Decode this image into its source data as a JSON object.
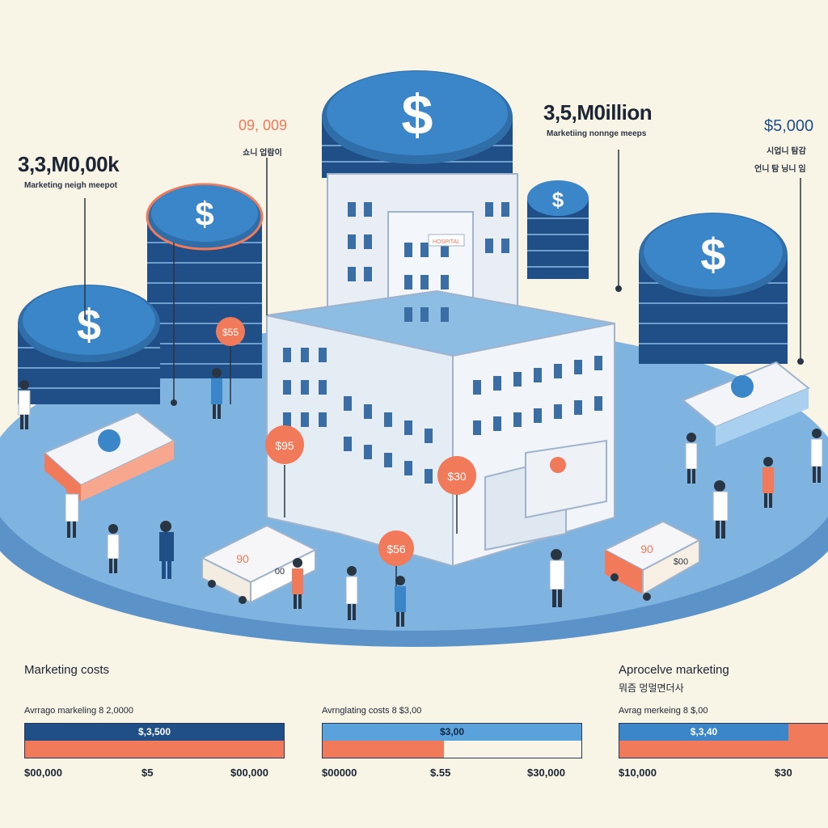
{
  "callouts": {
    "left_value": "3,3,M0,00k",
    "left_caption": "Marketing neigh meepot",
    "center_small_value": "09, 009",
    "center_small_caption": "쇼니 업람이",
    "center_value": "3,5,M0illion",
    "center_caption": "Marketiing nonnge meeps",
    "right_value": "$5,000",
    "right_caption_1": "시업니 탐감",
    "right_caption_2": "언니 탐 닝니 임"
  },
  "tags": {
    "tag_1": "$55",
    "tag_2": "$95",
    "tag_3": "$30",
    "tag_4": "$56",
    "cart_left": "90",
    "cart_left_b": "00",
    "cart_right": "90",
    "cart_right_b": "$00",
    "building_sign": "HOSPITAL"
  },
  "sections": {
    "left_title": "Marketing costs",
    "right_title": "Aprocelve marketing",
    "right_subtitle": "뭐즘 멍멀면더사"
  },
  "bars": [
    {
      "label": "Avrrago markeling 8 2,0000",
      "value_text": "$,3,500",
      "tick_left": "$00,000",
      "tick_mid": "$5",
      "tick_right": "$00,000"
    },
    {
      "label": "Avrnglating costs 8 $3,00",
      "value_text": "$3,00",
      "tick_left": "$00000",
      "tick_mid": "$.55",
      "tick_right": "$30,000"
    },
    {
      "label": "Avrag merkeing 8 $,00",
      "value_text": "$,3,40",
      "tick_left": "$10,000",
      "tick_mid": "$30",
      "tick_right": ""
    }
  ],
  "colors": {
    "navy": "#1f4f86",
    "blue": "#3a86c8",
    "light_blue": "#5aa2dc",
    "orange": "#f07a5a",
    "cream": "#f8f4e6",
    "platform": "#6aa7d8"
  }
}
